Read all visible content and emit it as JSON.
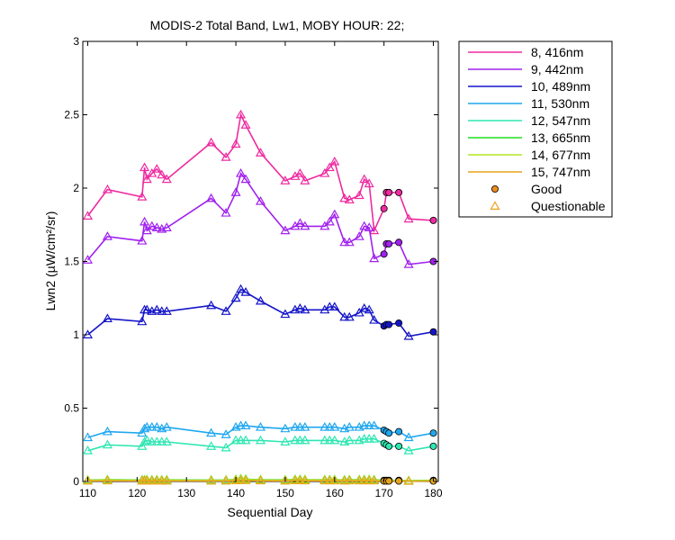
{
  "chart_data": {
    "type": "line",
    "title": "MODIS-2 Total Band, Lw1, MOBY HOUR: 22;",
    "xlabel": "Sequential Day",
    "ylabel": "Lwn2 (µW/cm²/sr)",
    "xlim": [
      109,
      181
    ],
    "ylim": [
      0,
      3
    ],
    "xticks": [
      {
        "value": 110,
        "label": "110"
      },
      {
        "value": 120,
        "label": "120"
      },
      {
        "value": 130,
        "label": "130"
      },
      {
        "value": 140,
        "label": "140"
      },
      {
        "value": 150,
        "label": "150"
      },
      {
        "value": 160,
        "label": "160"
      },
      {
        "value": 170,
        "label": "170"
      },
      {
        "value": 180,
        "label": "180"
      }
    ],
    "yticks": [
      {
        "value": 0,
        "label": "0"
      },
      {
        "value": 0.5,
        "label": "0.5"
      },
      {
        "value": 1,
        "label": "1"
      },
      {
        "value": 1.5,
        "label": "1.5"
      },
      {
        "value": 2,
        "label": "2"
      },
      {
        "value": 2.5,
        "label": "2.5"
      },
      {
        "value": 3,
        "label": "3"
      }
    ],
    "grid": false,
    "legend_position": "outside-right",
    "x": [
      110,
      114,
      121,
      121.5,
      122,
      123,
      124,
      125,
      126,
      135,
      138,
      140,
      141,
      142,
      145,
      150,
      152,
      153,
      154,
      158,
      159,
      160,
      162,
      163,
      165,
      166,
      167,
      168,
      170,
      170.5,
      171,
      173,
      175,
      180
    ],
    "quality": [
      "Q",
      "Q",
      "Q",
      "Q",
      "Q",
      "Q",
      "Q",
      "Q",
      "Q",
      "Q",
      "Q",
      "Q",
      "Q",
      "Q",
      "Q",
      "Q",
      "Q",
      "Q",
      "Q",
      "Q",
      "Q",
      "Q",
      "Q",
      "Q",
      "Q",
      "Q",
      "Q",
      "Q",
      "G",
      "G",
      "G",
      "G",
      "Q",
      "G"
    ],
    "series": [
      {
        "name": "8, 416nm",
        "color": "#ee2aa0",
        "values": [
          1.81,
          1.99,
          1.94,
          2.14,
          2.06,
          2.1,
          2.13,
          2.09,
          2.06,
          2.31,
          2.21,
          2.3,
          2.5,
          2.43,
          2.24,
          2.05,
          2.08,
          2.1,
          2.05,
          2.1,
          2.14,
          2.18,
          1.93,
          1.92,
          1.95,
          2.06,
          2.03,
          1.71,
          1.86,
          1.97,
          1.97,
          1.97,
          1.79,
          1.78
        ]
      },
      {
        "name": "9, 442nm",
        "color": "#a020ee",
        "values": [
          1.51,
          1.67,
          1.64,
          1.77,
          1.71,
          1.74,
          1.73,
          1.72,
          1.73,
          1.93,
          1.83,
          1.97,
          2.1,
          2.06,
          1.91,
          1.71,
          1.74,
          1.76,
          1.74,
          1.74,
          1.77,
          1.82,
          1.63,
          1.63,
          1.67,
          1.74,
          1.73,
          1.52,
          1.55,
          1.62,
          1.62,
          1.63,
          1.48,
          1.5
        ]
      },
      {
        "name": "10, 489nm",
        "color": "#1515c8",
        "values": [
          1.0,
          1.11,
          1.09,
          1.17,
          1.17,
          1.16,
          1.17,
          1.16,
          1.16,
          1.2,
          1.16,
          1.25,
          1.31,
          1.29,
          1.23,
          1.14,
          1.17,
          1.18,
          1.17,
          1.17,
          1.19,
          1.19,
          1.12,
          1.12,
          1.15,
          1.18,
          1.17,
          1.1,
          1.06,
          1.07,
          1.07,
          1.08,
          0.99,
          1.02
        ]
      },
      {
        "name": "11, 530nm",
        "color": "#1fa7ef",
        "values": [
          0.3,
          0.34,
          0.33,
          0.36,
          0.37,
          0.37,
          0.37,
          0.36,
          0.37,
          0.33,
          0.32,
          0.37,
          0.38,
          0.38,
          0.37,
          0.36,
          0.37,
          0.37,
          0.37,
          0.37,
          0.37,
          0.37,
          0.36,
          0.37,
          0.37,
          0.38,
          0.38,
          0.38,
          0.35,
          0.34,
          0.33,
          0.34,
          0.3,
          0.33
        ]
      },
      {
        "name": "12, 547nm",
        "color": "#2ee6b2",
        "values": [
          0.21,
          0.25,
          0.24,
          0.27,
          0.28,
          0.27,
          0.27,
          0.27,
          0.27,
          0.24,
          0.23,
          0.28,
          0.28,
          0.28,
          0.28,
          0.27,
          0.28,
          0.28,
          0.28,
          0.28,
          0.28,
          0.28,
          0.27,
          0.28,
          0.28,
          0.29,
          0.29,
          0.29,
          0.26,
          0.25,
          0.24,
          0.24,
          0.21,
          0.24
        ]
      },
      {
        "name": "13, 665nm",
        "color": "#22dd22",
        "values": [
          0.01,
          0.012,
          0.01,
          0.012,
          0.012,
          0.011,
          0.012,
          0.011,
          0.011,
          0.01,
          0.01,
          0.014,
          0.018,
          0.016,
          0.012,
          0.011,
          0.014,
          0.014,
          0.013,
          0.012,
          0.012,
          0.013,
          0.011,
          0.012,
          0.012,
          0.013,
          0.013,
          0.012,
          0.008,
          0.008,
          0.008,
          0.008,
          0.006,
          0.008
        ]
      },
      {
        "name": "14, 677nm",
        "color": "#b4e61e",
        "values": [
          0.008,
          0.01,
          0.008,
          0.01,
          0.01,
          0.009,
          0.01,
          0.009,
          0.009,
          0.008,
          0.008,
          0.012,
          0.015,
          0.014,
          0.01,
          0.009,
          0.012,
          0.012,
          0.011,
          0.01,
          0.01,
          0.011,
          0.009,
          0.01,
          0.01,
          0.011,
          0.011,
          0.01,
          0.006,
          0.006,
          0.006,
          0.006,
          0.005,
          0.006
        ]
      },
      {
        "name": "15, 747nm",
        "color": "#e6a41e",
        "values": [
          0.004,
          0.005,
          0.004,
          0.005,
          0.005,
          0.004,
          0.005,
          0.004,
          0.004,
          0.004,
          0.004,
          0.006,
          0.008,
          0.007,
          0.005,
          0.004,
          0.006,
          0.006,
          0.005,
          0.005,
          0.005,
          0.005,
          0.004,
          0.005,
          0.005,
          0.005,
          0.005,
          0.005,
          0.003,
          0.003,
          0.003,
          0.003,
          0.002,
          0.003
        ]
      }
    ],
    "marker_legend": [
      {
        "name": "Good",
        "marker": "circle",
        "color": "#f08c1e"
      },
      {
        "name": "Questionable",
        "marker": "triangle",
        "color": "#f0a01e"
      }
    ]
  }
}
